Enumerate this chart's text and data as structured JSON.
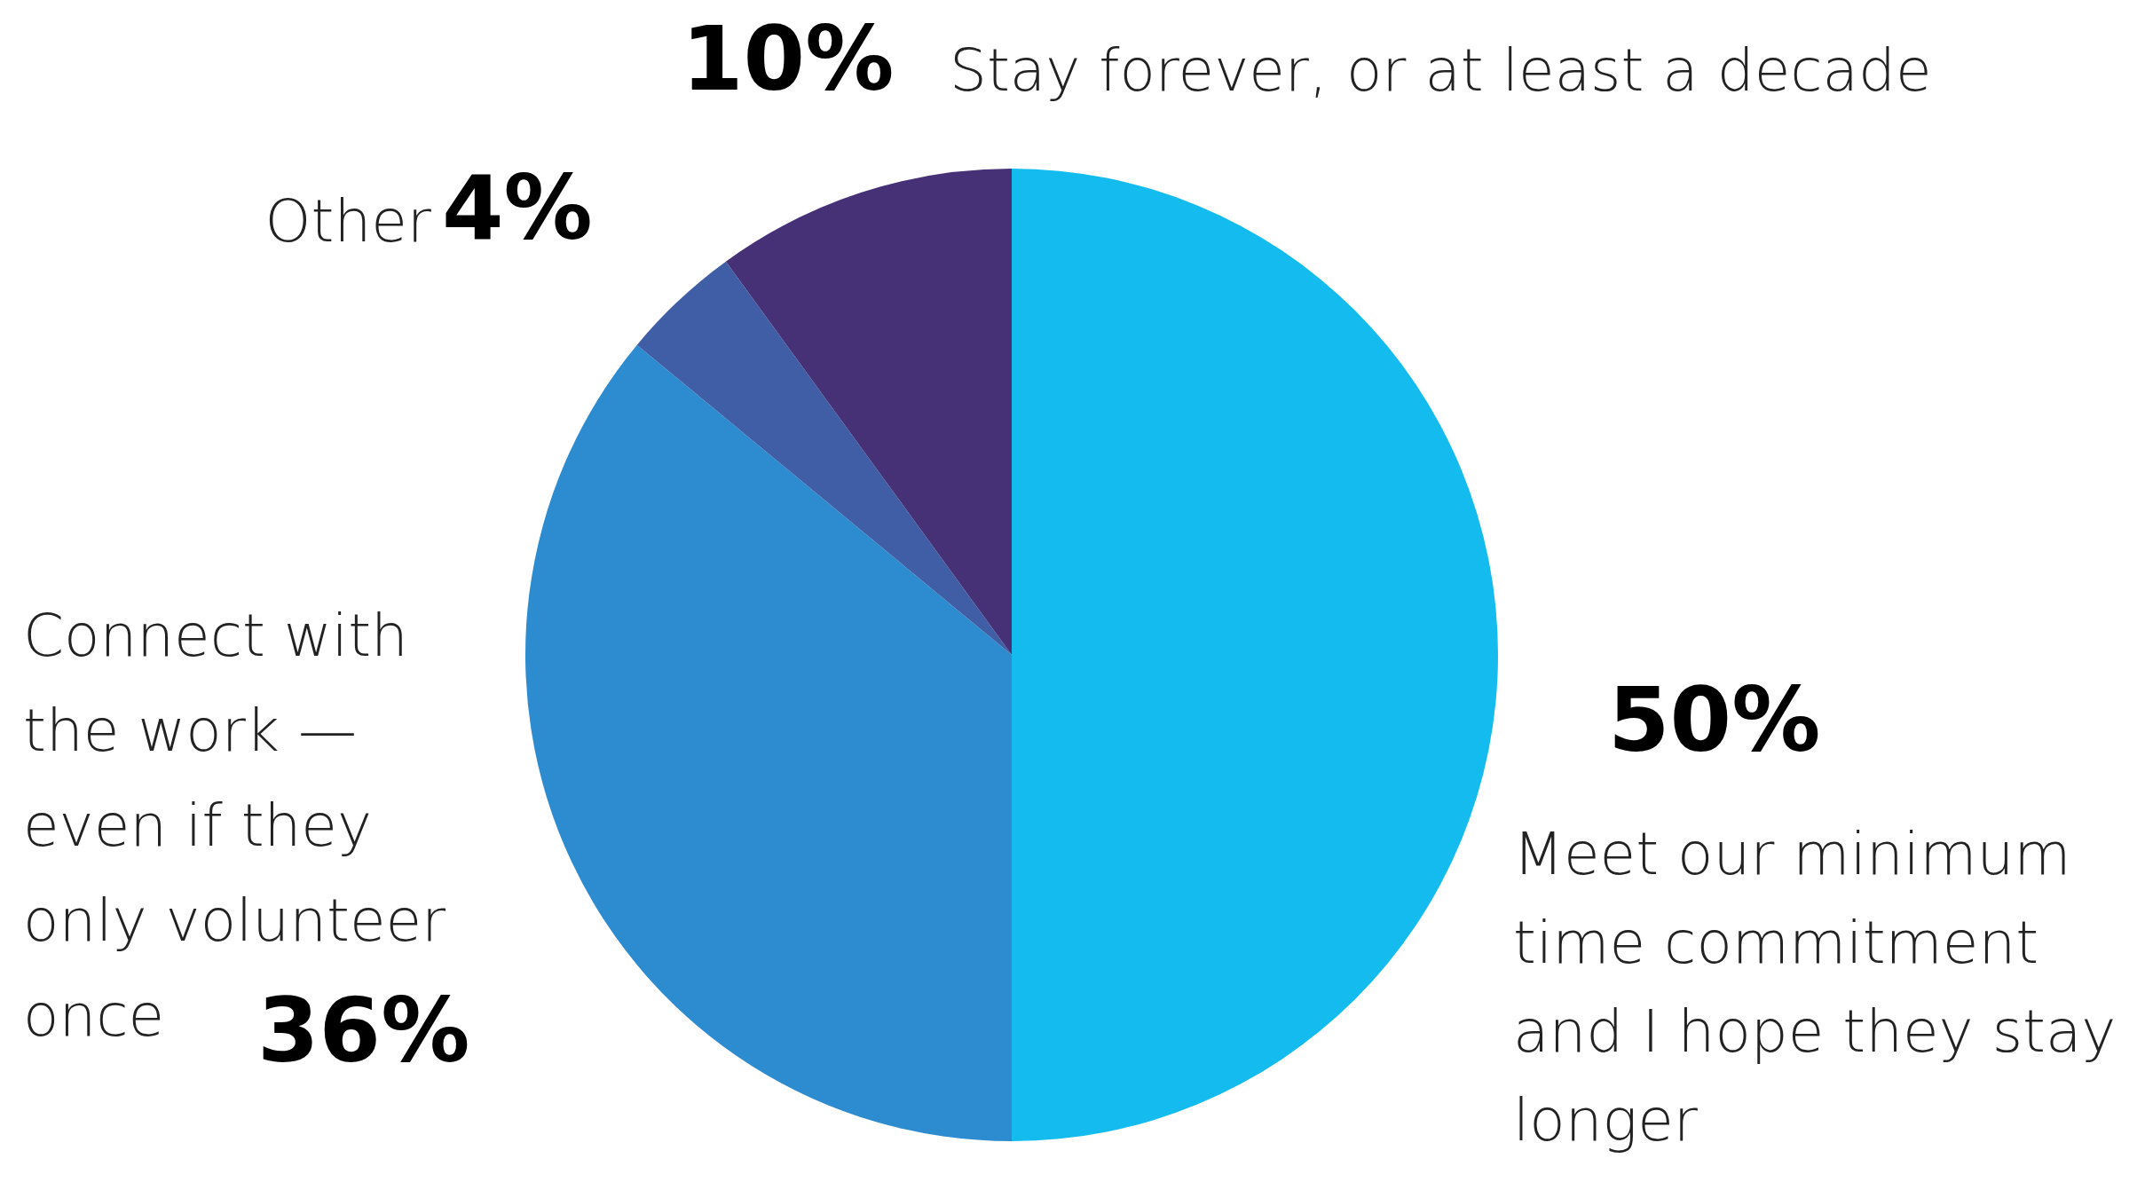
{
  "chart_data": {
    "type": "pie",
    "categories": [
      "Meet our minimum time commitment and I hope they stay longer",
      "Connect with the work — even if they only volunteer once",
      "Other",
      "Stay forever, or at least a decade"
    ],
    "values": [
      50,
      36,
      4,
      10
    ],
    "value_labels": [
      "50%",
      "36%",
      "4%",
      "10%"
    ],
    "colors": [
      "#14bbee",
      "#2d8ccf",
      "#3f5ea6",
      "#463176"
    ]
  }
}
